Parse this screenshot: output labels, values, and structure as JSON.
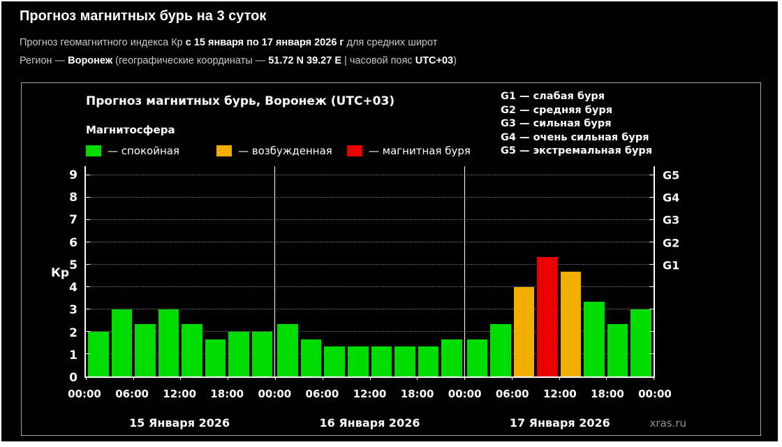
{
  "page": {
    "title": "Прогноз магнитных бурь на 3 суток",
    "line1": {
      "pre": "Прогноз геомагнитного индекса Кр ",
      "bold": "с 15 января по 17 января 2026 г",
      "post": " для средних широт"
    },
    "line2": {
      "seg1": "Регион — ",
      "bold1": "Воронеж",
      "seg2": " (географические координаты — ",
      "bold2": "51.72 N 39.27 E",
      "seg3": " | часовой пояс ",
      "bold3": "UTC+03",
      "seg4": ")"
    },
    "watermark": "xras.ru"
  },
  "legend": {
    "title": "Магнитосфера",
    "items": [
      {
        "color": "#00DC00",
        "label": "— спокойная"
      },
      {
        "color": "#F0AF00",
        "label": "— возбужденная"
      },
      {
        "color": "#EB0000",
        "label": "— магнитная буря"
      }
    ],
    "g_items": [
      "G1 — слабая буря",
      "G2 — средняя буря",
      "G3 — сильная буря",
      "G4 — очень сильная буря",
      "G5 — экстремальная буря"
    ]
  },
  "chart_data": {
    "type": "bar",
    "title": "Прогноз магнитных бурь, Воронеж (UTC+03)",
    "ylabel": "Кр",
    "ylim": [
      0,
      9
    ],
    "display_max": 9.4,
    "y_ticks": [
      0,
      1,
      2,
      3,
      4,
      5,
      6,
      7,
      8,
      9
    ],
    "g_axis": [
      {
        "value": 5,
        "label": "G1"
      },
      {
        "value": 6,
        "label": "G2"
      },
      {
        "value": 7,
        "label": "G3"
      },
      {
        "value": 8,
        "label": "G4"
      },
      {
        "value": 9,
        "label": "G5"
      }
    ],
    "hours_total": 72,
    "tick_step_hours": 6,
    "bar_step_hours": 3,
    "x_tick_labels": [
      "00:00",
      "06:00",
      "12:00",
      "18:00"
    ],
    "colors": {
      "quiet": "#00DC00",
      "excited": "#F0AF00",
      "storm": "#EB0000"
    },
    "thresholds": {
      "excited_min": 4,
      "storm_min": 5
    },
    "grid": true,
    "days": [
      {
        "label": "15 Января 2026",
        "values": [
          2,
          3,
          2.33,
          3,
          2.33,
          1.67,
          2,
          2
        ]
      },
      {
        "label": "16 Января 2026",
        "values": [
          2.33,
          1.67,
          1.33,
          1.33,
          1.33,
          1.33,
          1.33,
          1.67
        ]
      },
      {
        "label": "17 Января 2026",
        "values": [
          1.67,
          2.33,
          4,
          5.33,
          4.67,
          3.33,
          2.33,
          3
        ]
      }
    ]
  }
}
